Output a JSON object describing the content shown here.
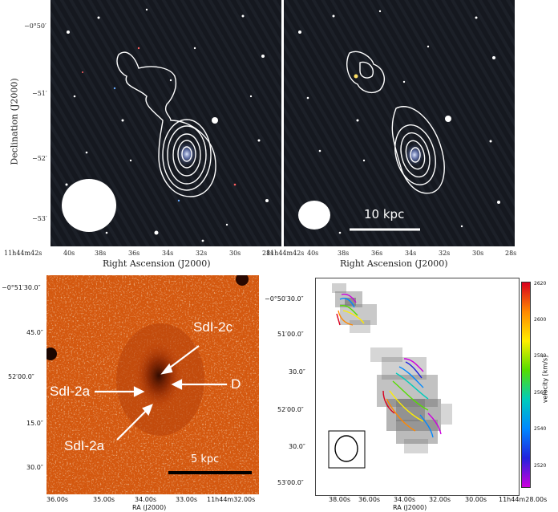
{
  "top": {
    "ylabel": "Declination (J2000)",
    "yticks": [
      "−0°50′",
      "−51′",
      "−52′",
      "−53′"
    ],
    "xlabel": "Right Ascension (J2000)",
    "xticks_left": [
      "11h44m42s",
      "40s",
      "38s",
      "36s",
      "34s",
      "32s",
      "30s",
      "28s"
    ],
    "xticks_right": [
      "11h44m42s",
      "40s",
      "38s",
      "36s",
      "34s",
      "32s",
      "30s",
      "28s"
    ],
    "scale_label": "10 kpc"
  },
  "bottom_left": {
    "yticks": [
      "−0°51′30.0″",
      "45.0″",
      "52′00.0″",
      "15.0″",
      "30.0″"
    ],
    "xticks": [
      "36.00s",
      "35.00s",
      "34.00s",
      "33.00s",
      "11h44m32.00s"
    ],
    "xlabel": "RA (J2000)",
    "labels": {
      "sdl2c": "SdI-2c",
      "sdl2a_left": "SdI-2a",
      "d": "D",
      "sdl2a_bottom": "SdI-2a"
    },
    "scale_label": "5 kpc"
  },
  "bottom_right": {
    "yticks": [
      "−0°50′30.0″",
      "51′00.0″",
      "30.0″",
      "52′00.0″",
      "30.0″",
      "53′00.0″"
    ],
    "xticks": [
      "38.00s",
      "36.00s",
      "34.00s",
      "32.00s",
      "30.00s",
      "11h44m28.00s"
    ],
    "xlabel": "RA (J2000)",
    "colorbar": {
      "label": "velocity [km/s]",
      "ticks": [
        "2620",
        "2600",
        "2580",
        "2560",
        "2540",
        "2520"
      ],
      "colors": [
        "#d8001e",
        "#ff8800",
        "#ffee00",
        "#55dd00",
        "#00ccbb",
        "#0088ff",
        "#2222dd",
        "#cc00dd"
      ]
    }
  }
}
